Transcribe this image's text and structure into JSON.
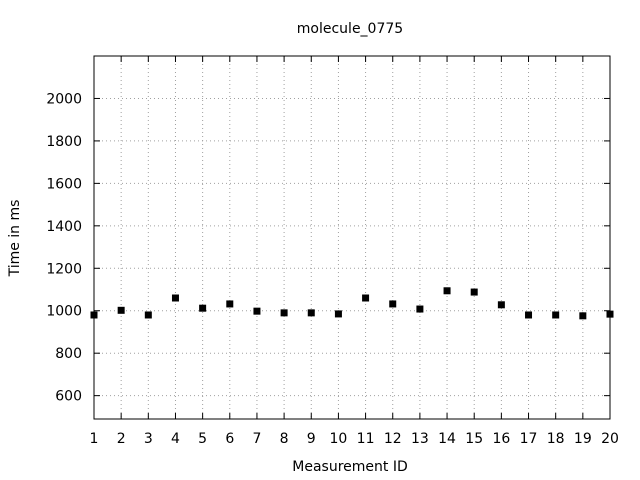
{
  "chart_data": {
    "type": "scatter",
    "title": "molecule_0775",
    "xlabel": "Measurement ID",
    "ylabel": "Time in ms",
    "xlim": [
      1,
      20
    ],
    "ylim": [
      490,
      2200
    ],
    "x_ticks": [
      1,
      2,
      3,
      4,
      5,
      6,
      7,
      8,
      9,
      10,
      11,
      12,
      13,
      14,
      15,
      16,
      17,
      18,
      19,
      20
    ],
    "y_ticks": [
      600,
      800,
      1000,
      1200,
      1400,
      1600,
      1800,
      2000
    ],
    "grid": true,
    "marker_color": "#000000",
    "series": [
      {
        "x": [
          1,
          2,
          3,
          4,
          5,
          6,
          7,
          8,
          9,
          10,
          11,
          12,
          13,
          14,
          15,
          16,
          17,
          18,
          19,
          20
        ],
        "y": [
          980,
          1002,
          980,
          1060,
          1012,
          1032,
          998,
          990,
          990,
          985,
          1060,
          1032,
          1008,
          1094,
          1088,
          1028,
          980,
          980,
          976,
          984
        ]
      }
    ]
  }
}
